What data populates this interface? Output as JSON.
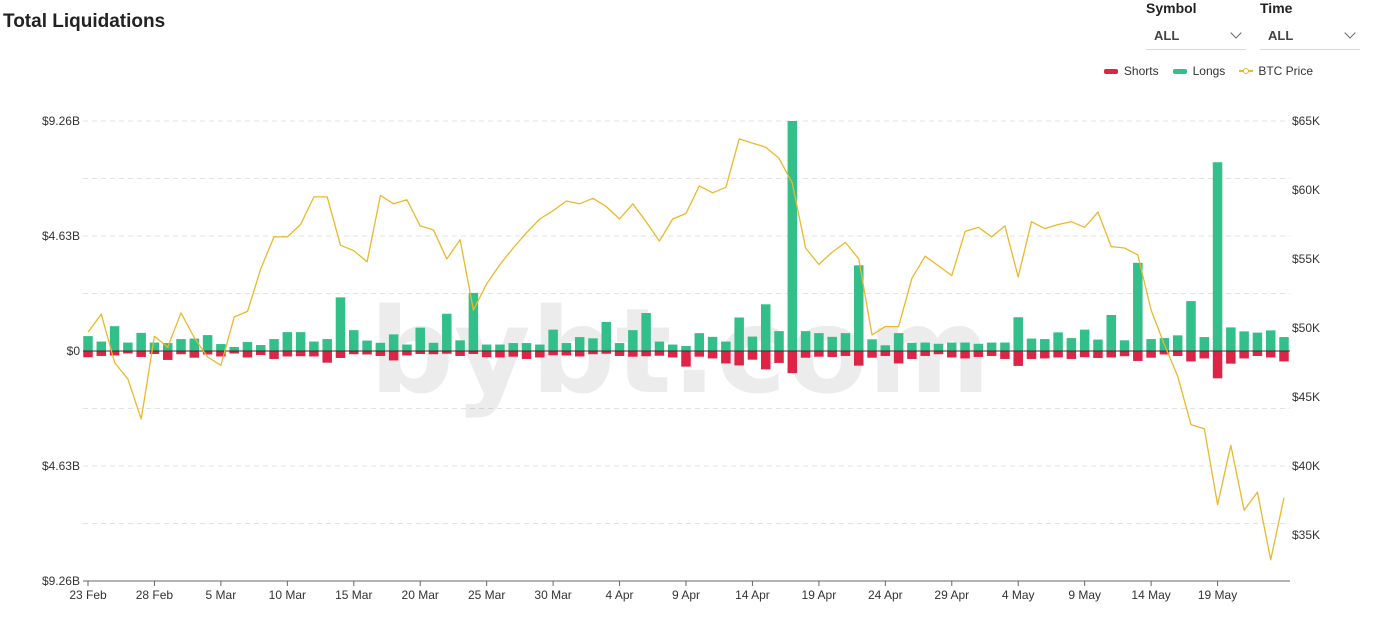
{
  "header": {
    "title": "Total Liquidations"
  },
  "controls": {
    "symbol": {
      "label": "Symbol",
      "value": "ALL"
    },
    "time": {
      "label": "Time",
      "value": "ALL"
    }
  },
  "watermark": "bybt.com",
  "colors": {
    "shorts": "#dd2346",
    "longs": "#32bf8a",
    "price": "#e8b92d"
  },
  "chart_data": {
    "type": "bar",
    "legend": [
      "Shorts",
      "Longs",
      "BTC Price"
    ],
    "legend_position": "top-right",
    "grid": true,
    "x_tick_labels": [
      "23 Feb",
      "28 Feb",
      "5 Mar",
      "10 Mar",
      "15 Mar",
      "20 Mar",
      "25 Mar",
      "30 Mar",
      "4 Apr",
      "9 Apr",
      "14 Apr",
      "19 Apr",
      "24 Apr",
      "29 Apr",
      "4 May",
      "9 May",
      "14 May",
      "19 May"
    ],
    "y_left": {
      "ticks": [
        "$9.26B",
        "$4.63B",
        "$0",
        "$4.63B",
        "$9.26B"
      ],
      "range": [
        -9.26,
        9.26
      ]
    },
    "y_right": {
      "ticks": [
        "$65K",
        "$60K",
        "$55K",
        "$50K",
        "$45K",
        "$40K",
        "$35K"
      ],
      "range": [
        31666,
        65000
      ]
    },
    "series": [
      {
        "name": "Longs",
        "values": [
          0.6,
          0.38,
          1.0,
          0.34,
          0.73,
          0.34,
          0.32,
          0.48,
          0.5,
          0.64,
          0.28,
          0.16,
          0.36,
          0.24,
          0.48,
          0.76,
          0.76,
          0.38,
          0.48,
          2.16,
          0.84,
          0.42,
          0.33,
          0.67,
          0.26,
          0.94,
          0.33,
          1.5,
          0.43,
          2.34,
          0.26,
          0.26,
          0.32,
          0.32,
          0.26,
          0.86,
          0.32,
          0.56,
          0.51,
          1.17,
          0.32,
          0.84,
          1.53,
          0.38,
          0.26,
          0.2,
          0.72,
          0.57,
          0.38,
          1.35,
          0.58,
          1.88,
          0.8,
          9.26,
          0.8,
          0.72,
          0.57,
          0.72,
          3.45,
          0.47,
          0.23,
          0.72,
          0.33,
          0.34,
          0.29,
          0.34,
          0.34,
          0.29,
          0.34,
          0.34,
          1.36,
          0.5,
          0.48,
          0.75,
          0.52,
          0.86,
          0.46,
          1.45,
          0.43,
          3.55,
          0.48,
          0.52,
          0.63,
          2.01,
          0.56,
          7.6,
          0.95,
          0.79,
          0.74,
          0.83,
          0.56
        ]
      },
      {
        "name": "Shorts",
        "values": [
          0.25,
          0.2,
          0.18,
          0.1,
          0.24,
          0.12,
          0.36,
          0.13,
          0.27,
          0.14,
          0.22,
          0.1,
          0.26,
          0.16,
          0.32,
          0.22,
          0.21,
          0.22,
          0.47,
          0.28,
          0.13,
          0.14,
          0.2,
          0.38,
          0.18,
          0.12,
          0.13,
          0.11,
          0.2,
          0.12,
          0.25,
          0.26,
          0.23,
          0.32,
          0.26,
          0.17,
          0.18,
          0.22,
          0.13,
          0.11,
          0.2,
          0.23,
          0.21,
          0.19,
          0.26,
          0.63,
          0.23,
          0.3,
          0.5,
          0.58,
          0.35,
          0.74,
          0.48,
          0.89,
          0.27,
          0.23,
          0.24,
          0.2,
          0.59,
          0.27,
          0.2,
          0.5,
          0.32,
          0.2,
          0.13,
          0.26,
          0.3,
          0.24,
          0.2,
          0.32,
          0.6,
          0.32,
          0.3,
          0.26,
          0.32,
          0.25,
          0.28,
          0.26,
          0.21,
          0.4,
          0.27,
          0.14,
          0.2,
          0.42,
          0.3,
          1.1,
          0.51,
          0.3,
          0.2,
          0.26,
          0.42
        ]
      },
      {
        "name": "BTC Price",
        "values": [
          49700,
          51000,
          47500,
          46300,
          43400,
          49400,
          48600,
          51100,
          49300,
          47900,
          47300,
          50800,
          51200,
          54300,
          56600,
          56600,
          57500,
          59500,
          59500,
          56000,
          55600,
          54800,
          59600,
          59000,
          59300,
          57400,
          57100,
          55000,
          56400,
          51300,
          53200,
          54600,
          55800,
          56900,
          57900,
          58500,
          59200,
          59000,
          59400,
          58800,
          57900,
          59000,
          57700,
          56300,
          57900,
          58300,
          60300,
          59800,
          60200,
          63700,
          63400,
          63100,
          62300,
          60500,
          55800,
          54600,
          55500,
          56200,
          55000,
          49500,
          50100,
          50100,
          53600,
          55200,
          54500,
          53800,
          57000,
          57300,
          56600,
          57400,
          53700,
          57700,
          57200,
          57500,
          57700,
          57300,
          58400,
          55900,
          55800,
          55300,
          51300,
          48800,
          46500,
          43000,
          42700,
          37200,
          41500,
          36800,
          38100,
          33200,
          37700
        ]
      }
    ]
  }
}
